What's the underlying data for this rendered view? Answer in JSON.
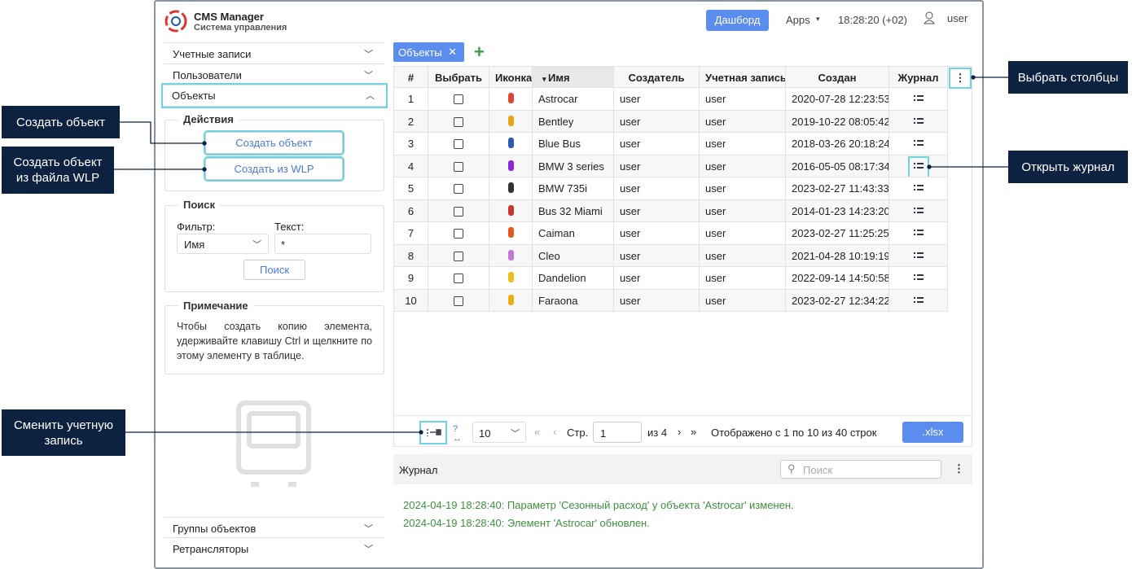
{
  "header": {
    "app_name": "CMS Manager",
    "app_subtitle": "Система управления",
    "dashboard_button": "Дашборд",
    "apps": "Apps",
    "time": "18:28:20 (+02)",
    "user": "user"
  },
  "sidebar": {
    "sections": [
      "Учетные записи",
      "Пользователи",
      "Объекты"
    ],
    "actions": {
      "title": "Действия",
      "buttons": [
        "Создать объект",
        "Создать из WLP"
      ]
    },
    "search": {
      "title": "Поиск",
      "filter_label": "Фильтр:",
      "filter_value": "Имя",
      "text_label": "Текст:",
      "text_value": "*",
      "button": "Поиск"
    },
    "note": {
      "title": "Примечание",
      "text": "Чтобы создать копию элемента, удерживайте клавишу Ctrl и щелкните по этому элементу в таблице."
    },
    "bottom_sections": [
      "Группы объектов",
      "Ретрансляторы"
    ]
  },
  "tab": "Объекты",
  "table": {
    "columns": [
      "#",
      "Выбрать",
      "Иконка",
      "Имя",
      "Создатель",
      "Учетная запись",
      "Создан",
      "Журнал"
    ],
    "rows": [
      [
        1,
        "Astrocar",
        "user",
        "user",
        "2020-07-28 12:23:53"
      ],
      [
        2,
        "Bentley",
        "user",
        "user",
        "2019-10-22 08:05:42"
      ],
      [
        3,
        "Blue Bus",
        "user",
        "user",
        "2018-03-26 20:18:24"
      ],
      [
        4,
        "BMW 3 series",
        "user",
        "user",
        "2016-05-05 08:17:34"
      ],
      [
        5,
        "BMW 735i",
        "user",
        "user",
        "2023-02-27 11:43:33"
      ],
      [
        6,
        "Bus 32 Miami",
        "user",
        "user",
        "2014-01-23 14:23:20"
      ],
      [
        7,
        "Caiman",
        "user",
        "user",
        "2023-02-27 11:25:25"
      ],
      [
        8,
        "Cleo",
        "user",
        "user",
        "2021-04-28 10:19:19"
      ],
      [
        9,
        "Dandelion",
        "user",
        "user",
        "2022-09-14 14:50:58"
      ],
      [
        10,
        "Faraona",
        "user",
        "user",
        "2023-02-27 12:34:22"
      ]
    ]
  },
  "pager": {
    "page_size": "10",
    "page_label": "Стр.",
    "page": "1",
    "of": "из 4",
    "shown": "Отображено с 1 по 10 из 40 строк",
    "export": ".xlsx"
  },
  "log": {
    "title": "Журнал",
    "search_placeholder": "Поиск",
    "entries": [
      "2024-04-19 18:28:40: Параметр 'Сезонный расход' у объекта 'Astrocar' изменен.",
      "2024-04-19 18:28:40: Элемент 'Astrocar' обновлен."
    ]
  },
  "callouts": [
    "Выбрать столбцы",
    "Открыть журнал",
    "Создать объект",
    "Создать объект из файла WLP",
    "Сменить учетную запись"
  ]
}
